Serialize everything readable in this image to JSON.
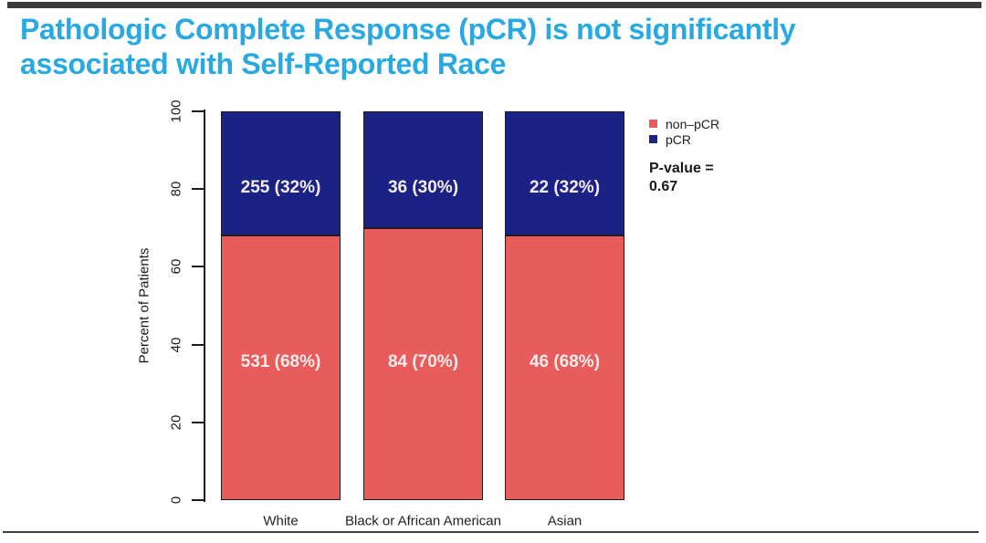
{
  "header": {
    "title_line1": "Pathologic Complete Response (pCR) is not significantly",
    "title_line2": "associated with Self-Reported Race",
    "title_color": "#29a9e1"
  },
  "chart_data": {
    "type": "bar",
    "stacked": true,
    "categories": [
      "White",
      "Black or African American",
      "Asian"
    ],
    "series": [
      {
        "name": "non-pCR",
        "color": "#e95c5c",
        "values_percent": [
          68,
          70,
          68
        ],
        "counts": [
          531,
          84,
          46
        ],
        "bar_labels": [
          "531 (68%)",
          "84 (70%)",
          "46 (68%)"
        ]
      },
      {
        "name": "pCR",
        "color": "#1b2285",
        "values_percent": [
          32,
          30,
          32
        ],
        "counts": [
          255,
          36,
          22
        ],
        "bar_labels": [
          "255 (32%)",
          "36 (30%)",
          "22 (32%)"
        ]
      }
    ],
    "ylabel": "Percent of Patients",
    "xlabel": "",
    "ylim": [
      0,
      100
    ],
    "yticks": [
      0,
      20,
      40,
      60,
      80,
      100
    ],
    "grid": false,
    "legend_position": "top-right",
    "legend": [
      {
        "label": "non–pCR",
        "color": "#e95c5c"
      },
      {
        "label": "pCR",
        "color": "#1b2285"
      }
    ]
  },
  "annotations": {
    "p_value_label": "P-value =",
    "p_value": "0.67"
  }
}
